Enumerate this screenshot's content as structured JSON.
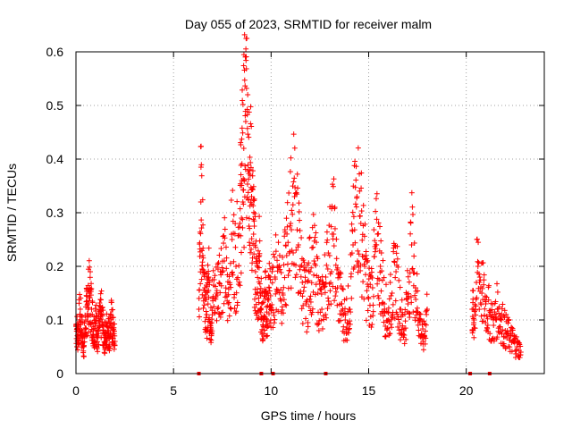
{
  "chart_data": {
    "type": "scatter",
    "title": "Day 055 of 2023, SRMTID for receiver malm",
    "xlabel": "GPS time / hours",
    "ylabel": "SRMTID / TECUs",
    "xlim": [
      0,
      24
    ],
    "ylim": [
      0,
      0.6
    ],
    "xticks": [
      0,
      5,
      10,
      15,
      20
    ],
    "xtick_labels": [
      "0",
      "5",
      "10",
      "15",
      "20"
    ],
    "yticks": [
      0,
      0.1,
      0.2,
      0.3,
      0.4,
      0.5,
      0.6
    ],
    "ytick_labels": [
      "0",
      "0.1",
      "0.2",
      "0.3",
      "0.4",
      "0.5",
      "0.6"
    ],
    "grid": true,
    "marker": "+",
    "color": "#ff0000",
    "gap_markers_x": [
      6.3,
      9.5,
      10.1,
      12.8,
      20.2,
      21.2
    ],
    "series": [
      {
        "name": "SRMTID",
        "x": [
          0.0,
          0.1,
          0.2,
          0.3,
          0.4,
          0.5,
          0.6,
          0.7,
          0.8,
          0.9,
          1.0,
          1.1,
          1.2,
          1.3,
          1.4,
          1.5,
          1.6,
          1.7,
          1.8,
          1.9,
          2.0,
          6.3,
          6.4,
          6.5,
          6.6,
          6.7,
          6.8,
          6.9,
          7.0,
          7.2,
          7.4,
          7.6,
          7.8,
          8.0,
          8.2,
          8.4,
          8.5,
          8.6,
          8.7,
          8.8,
          8.9,
          9.0,
          9.1,
          9.2,
          9.3,
          9.4,
          9.5,
          9.6,
          9.7,
          9.8,
          9.9,
          10.0,
          10.2,
          10.4,
          10.6,
          10.8,
          11.0,
          11.2,
          11.4,
          11.6,
          11.8,
          12.0,
          12.2,
          12.4,
          12.6,
          12.8,
          13.0,
          13.2,
          13.4,
          13.6,
          13.8,
          14.0,
          14.2,
          14.4,
          14.6,
          14.8,
          15.0,
          15.2,
          15.4,
          15.6,
          15.8,
          16.0,
          16.2,
          16.4,
          16.6,
          16.8,
          17.0,
          17.2,
          17.4,
          17.6,
          17.8,
          18.0,
          20.3,
          20.4,
          20.6,
          20.8,
          21.0,
          21.2,
          21.4,
          21.6,
          21.8,
          22.0,
          22.2,
          22.4,
          22.6,
          22.8
        ],
        "y": [
          0.09,
          0.07,
          0.11,
          0.08,
          0.05,
          0.1,
          0.13,
          0.15,
          0.12,
          0.08,
          0.1,
          0.07,
          0.09,
          0.11,
          0.08,
          0.06,
          0.09,
          0.07,
          0.1,
          0.08,
          0.06,
          0.12,
          0.32,
          0.22,
          0.16,
          0.11,
          0.18,
          0.08,
          0.14,
          0.15,
          0.19,
          0.21,
          0.13,
          0.25,
          0.2,
          0.28,
          0.36,
          0.42,
          0.47,
          0.52,
          0.38,
          0.33,
          0.26,
          0.19,
          0.15,
          0.22,
          0.12,
          0.09,
          0.14,
          0.1,
          0.16,
          0.12,
          0.18,
          0.2,
          0.15,
          0.22,
          0.28,
          0.33,
          0.24,
          0.17,
          0.13,
          0.19,
          0.21,
          0.15,
          0.12,
          0.18,
          0.22,
          0.26,
          0.16,
          0.13,
          0.1,
          0.12,
          0.24,
          0.33,
          0.28,
          0.2,
          0.14,
          0.16,
          0.24,
          0.2,
          0.13,
          0.1,
          0.15,
          0.19,
          0.12,
          0.08,
          0.14,
          0.24,
          0.16,
          0.1,
          0.06,
          0.12,
          0.12,
          0.1,
          0.2,
          0.15,
          0.13,
          0.11,
          0.09,
          0.12,
          0.1,
          0.08,
          0.07,
          0.06,
          0.05,
          0.04
        ]
      }
    ]
  }
}
